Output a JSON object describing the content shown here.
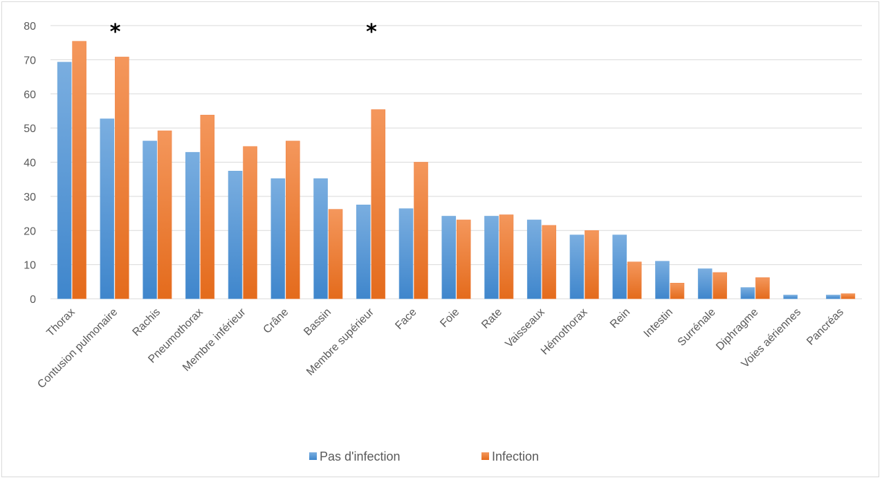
{
  "chart_data": {
    "type": "bar",
    "title": "",
    "xlabel": "",
    "ylabel": "",
    "ylim": [
      0,
      80
    ],
    "yticks": [
      0,
      10,
      20,
      30,
      40,
      50,
      60,
      70,
      80
    ],
    "grid": true,
    "legend_position": "bottom",
    "categories": [
      "Thorax",
      "Contusion pulmonaire",
      "Rachis",
      "Pneumothorax",
      "Membre inférieur",
      "Crâne",
      "Bassin",
      "Membre supérieur",
      "Face",
      "Foie",
      "Rate",
      "Vaisseaux",
      "Hémothorax",
      "Rein",
      "Intestin",
      "Surrénale",
      "Diphragme",
      "Voies aériennes",
      "Pancréas"
    ],
    "series": [
      {
        "name": "Pas d'infection",
        "color": "#5b9bd5",
        "values": [
          69.3,
          52.7,
          46.2,
          42.9,
          37.4,
          35.2,
          35.2,
          27.5,
          26.4,
          24.2,
          24.2,
          23.1,
          18.7,
          18.7,
          11.0,
          8.8,
          3.3,
          1.1,
          1.1
        ]
      },
      {
        "name": "Infection",
        "color": "#ed7d31",
        "values": [
          75.4,
          70.8,
          49.2,
          53.8,
          44.6,
          46.2,
          26.2,
          55.4,
          40.0,
          23.1,
          24.6,
          21.5,
          20.0,
          10.8,
          4.6,
          7.7,
          6.2,
          0,
          1.5
        ]
      }
    ],
    "annotations": [
      {
        "text": "*",
        "category": "Contusion pulmonaire"
      },
      {
        "text": "*",
        "category": "Membre supérieur"
      }
    ]
  }
}
